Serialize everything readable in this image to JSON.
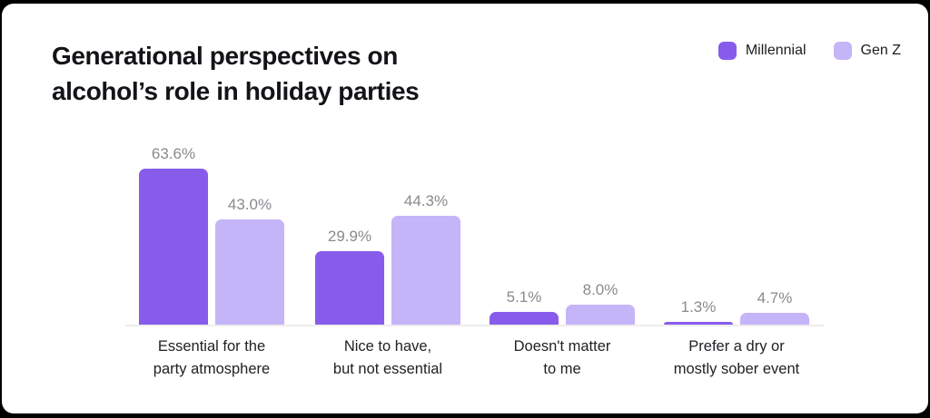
{
  "page": {
    "background": "#000000",
    "card_background": "#ffffff"
  },
  "title": {
    "line1": "Generational perspectives on",
    "line2": "alcohol’s role in holiday parties"
  },
  "legend": {
    "items": [
      {
        "label": "Millennial",
        "color": "#875CEB"
      },
      {
        "label": "Gen Z",
        "color": "#C4B4F8"
      }
    ]
  },
  "chart_data": {
    "type": "bar",
    "title": "Generational perspectives on alcohol’s role in holiday parties",
    "categories": [
      "Essential for the party atmosphere",
      "Nice to have, but not essential",
      "Doesn't matter to me",
      "Prefer a dry or mostly sober event"
    ],
    "category_lines": [
      [
        "Essential for the",
        "party atmosphere"
      ],
      [
        "Nice to have,",
        "but not essential"
      ],
      [
        "Doesn't matter",
        "to me"
      ],
      [
        "Prefer a dry or",
        "mostly sober event"
      ]
    ],
    "series": [
      {
        "name": "Millennial",
        "color": "#875CEB",
        "values": [
          63.6,
          29.9,
          5.1,
          1.3
        ],
        "labels": [
          "63.6%",
          "29.9%",
          "5.1%",
          "1.3%"
        ]
      },
      {
        "name": "Gen Z",
        "color": "#C4B4F8",
        "values": [
          43.0,
          44.3,
          8.0,
          4.7
        ],
        "labels": [
          "43.0%",
          "44.3%",
          "8.0%",
          "4.7%"
        ]
      }
    ],
    "ylim": [
      0,
      70
    ],
    "xlabel": "",
    "ylabel": "",
    "grid": false,
    "legend_position": "top-right",
    "value_label_color": "#8A8A8F",
    "category_label_color": "#212126",
    "axis_line_color": "#EDEDED"
  }
}
